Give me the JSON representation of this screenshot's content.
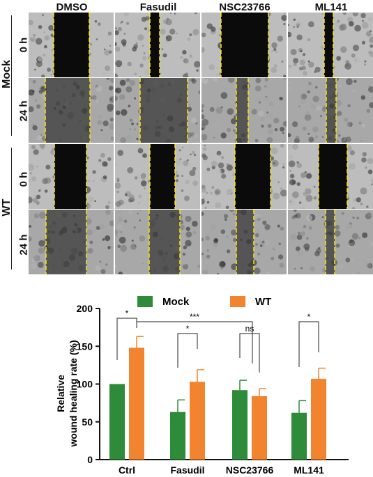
{
  "figure": {
    "columns": [
      "DMSO",
      "Fasudil",
      "NSC23766",
      "ML141"
    ],
    "groups": [
      {
        "label": "Mock",
        "rows": [
          "0 h",
          "24 h"
        ]
      },
      {
        "label": "WT",
        "rows": [
          "0 h",
          "24 h"
        ]
      }
    ]
  },
  "chart_data": {
    "type": "bar",
    "categories": [
      "Ctrl",
      "Fasudil",
      "NSC23766",
      "ML141"
    ],
    "series": [
      {
        "name": "Mock",
        "color": "#2e8b3a",
        "values": [
          100,
          63,
          92,
          62
        ],
        "errors": [
          0,
          16,
          13,
          16
        ]
      },
      {
        "name": "WT",
        "color": "#f2832f",
        "values": [
          148,
          103,
          84,
          107
        ],
        "errors": [
          15,
          16,
          10,
          14
        ]
      }
    ],
    "ylabel": "Relative\nwound healing rate (%)",
    "ylim": [
      0,
      200
    ],
    "yticks": [
      0,
      50,
      100,
      150,
      200
    ],
    "legend_position": "top",
    "significance": [
      {
        "text": "*",
        "between": "Ctrl Mock vs Ctrl WT"
      },
      {
        "text": "***",
        "between": "Ctrl WT vs NSC23766 WT"
      },
      {
        "text": "*",
        "between": "Fasudil Mock vs Fasudil WT"
      },
      {
        "text": "ns",
        "between": "NSC23766 Mock vs NSC23766 WT"
      },
      {
        "text": "*",
        "between": "ML141 Mock vs ML141 WT"
      }
    ]
  }
}
